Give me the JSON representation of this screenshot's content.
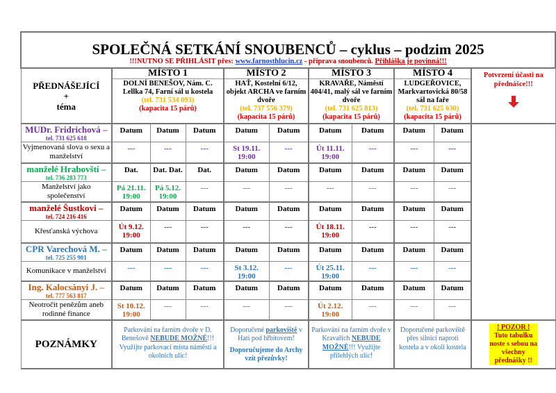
{
  "title": "SPOLEČNÁ SETKÁNÍ SNOUBENCŮ – cyklus – podzim 2025",
  "subtitle": {
    "pre": "!!!NUTNO SE PŘIHLÁSIT přes: ",
    "link": "www.farnosthlucin.cz",
    "mid": " - příprava snoubenců. ",
    "required": "Přihláška je povinná!!!"
  },
  "header": {
    "label_line1": "PŘEDNÁŠEJÍCÍ",
    "label_line2": "+",
    "label_line3": "téma",
    "confirm": "Potvrzení účasti na přednášce!!!",
    "arrow_icon": "arrow-down-icon"
  },
  "places": [
    {
      "name": "MÍSTO  1",
      "address": "DOLNÍ BENEŠOV, Nám. C. Lellka 74, Farní sál u kostela",
      "tel": "(tel. 731 534 093)",
      "capacity": "(kapacita 15 párů)"
    },
    {
      "name": "MÍSTO  2",
      "address": "HAŤ, Kostelní 6/12, objekt ARCHA ve farním dvoře",
      "tel": "(tel. 737 556 379)",
      "capacity": "(kapacita 15 párů)"
    },
    {
      "name": "MÍSTO  3",
      "address": "KRAVAŘE, Náměstí 404/41, malý sál ve farním dvoře",
      "tel": "(tel. 731 625 813)",
      "capacity": "(kapacita 15 párů)"
    },
    {
      "name": "MÍSTO  4",
      "address": "LUDGEŘOVICE, Markvartovická 80/58 sál na faře",
      "tel": "(tel. 731 625 630)",
      "capacity": "(kapacita 15 párů)"
    }
  ],
  "colors": {
    "purple": "#7030a0",
    "green": "#00b050",
    "red": "#c00000",
    "blue": "#2e75b6",
    "orange": "#c55a11"
  },
  "speakers": [
    {
      "name": "MUDr. Fridrichová –",
      "tel": "tel. 731 625 618",
      "topic": "Vyjmenovaná slova o sexu a manželství",
      "color": "#7030a0",
      "heads": [
        "Datum",
        "Datum",
        "Datum",
        "Datum",
        "Datum",
        "Datum",
        "Datum",
        "Datum",
        "Datum"
      ],
      "values": [
        "---",
        "---",
        "---",
        "St 19.11. 19:00",
        "---",
        "Út 11.11. 19:00",
        "---",
        "---",
        "---"
      ]
    },
    {
      "name": "manželé Hrabovští –",
      "tel": "tel. 736 283 773",
      "topic": "Manželství jako společenství",
      "color": "#00b050",
      "heads": [
        "Dat.",
        "Dat. Dat.",
        "Dat.",
        "Datum",
        "Datum",
        "Datum",
        "Datum",
        "Datum",
        "Datum"
      ],
      "values": [
        "Pá 21.11. 19:00",
        "Pá 5.12. 19:00",
        "---",
        "---",
        "---",
        "---",
        "---",
        "---",
        "---"
      ]
    },
    {
      "name": "manželé Šustkovi –",
      "tel": "tel. 724 216 416",
      "topic": "Křesťanská výchova",
      "color": "#c00000",
      "heads": [
        "Datum",
        "Datum",
        "Datum",
        "Datum",
        "Datum",
        "Datum",
        "Datum",
        "Datum",
        "Datum"
      ],
      "values": [
        "Út 9.12. 19:00",
        "---",
        "---",
        "---",
        "---",
        "Út 18.11. 19:00",
        "---",
        "---",
        "---"
      ]
    },
    {
      "name": "CPR Varechová M. –",
      "tel": "tel. 725 255 901",
      "topic": "Komunikace v manželství",
      "color": "#2e75b6",
      "heads": [
        "Datum",
        "Datum",
        "Datum",
        "Datum",
        "Datum",
        "Datum",
        "Datum",
        "Datum",
        "Datum"
      ],
      "values": [
        "---",
        "---",
        "---",
        "St 3.12. 19:00",
        "---",
        "Út 25.11. 19:00",
        "---",
        "---",
        "---"
      ]
    },
    {
      "name": "Ing. Kalocsányi J. –",
      "tel": "tel. 777 563 817",
      "topic": "Neotročit penězům aneb rodinné finance",
      "color": "#c55a11",
      "heads": [
        "Datum",
        "Datum",
        "Datum",
        "Datum",
        "Datum",
        "Datum",
        "Datum",
        "Datum",
        "Datum"
      ],
      "values": [
        "St 10.12. 19:00",
        "---",
        "---",
        "---",
        "---",
        "Út 2.12. 19:00",
        "---",
        "---",
        "---"
      ]
    }
  ],
  "notes": {
    "label": "POZNÁMKY",
    "n1": {
      "a": "Parkování na farním dvoře v D. Benešově ",
      "b": "NEBUDE MOŽNÉ",
      "c": "!!! Využijte parkovací místa náměstí a okolních ulic!"
    },
    "n2": {
      "a": "Doporučené ",
      "b": "parkoviště",
      "c": " v Hati pod hřbitovem!",
      "d": "Doporučujeme do Archy vzít přezůvky!"
    },
    "n3": {
      "a": "Parkování na farním dvoře v Kravařích ",
      "b": "NEBUDE MOŽNÉ",
      "c": "!!! Využijte přilehlých ulic!"
    },
    "n4": "Doporučené parkoviště přes silnici naproti kostela a v okolí kostela",
    "pozor_title": "! POZOR !",
    "pozor_text": "Tuto tabulku noste s sebou na všechny přednášky !!"
  }
}
